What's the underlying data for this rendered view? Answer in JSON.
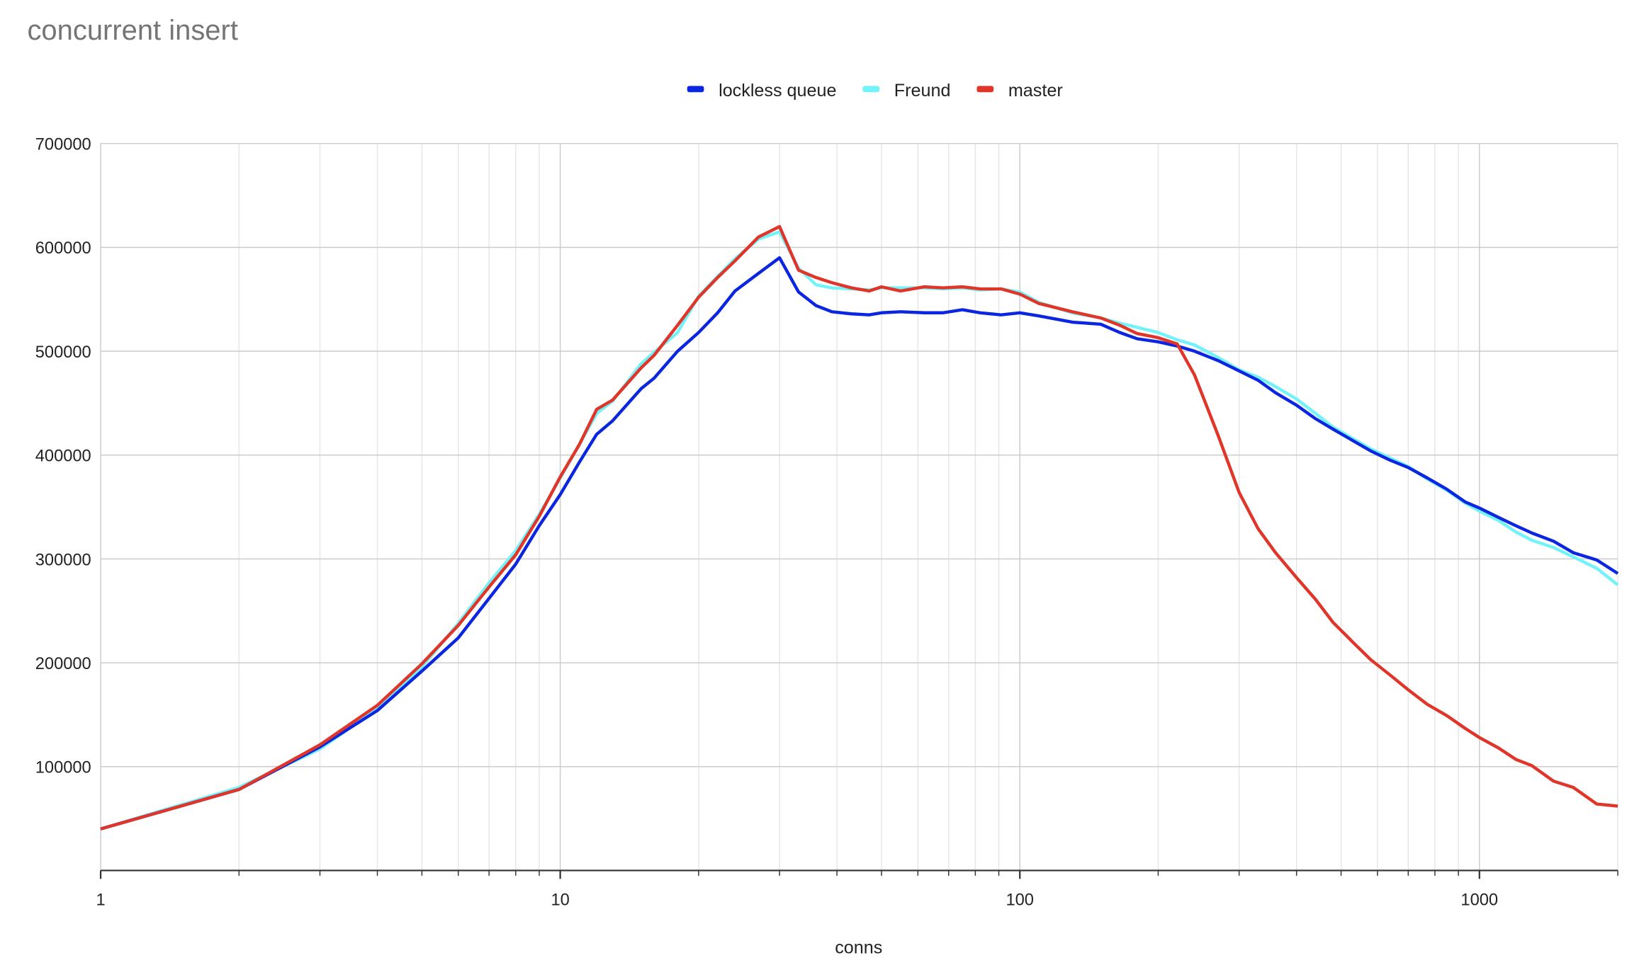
{
  "chart_data": {
    "type": "line",
    "title": "concurrent insert",
    "xlabel": "conns",
    "xscale": "log",
    "legend": "top",
    "grid": true,
    "xlim": [
      1,
      2000
    ],
    "ylim": [
      0,
      700000
    ],
    "xticks": [
      1,
      10,
      100,
      1000
    ],
    "xminorticks": [
      2,
      3,
      4,
      5,
      6,
      7,
      8,
      9,
      20,
      30,
      40,
      50,
      60,
      70,
      80,
      90,
      200,
      300,
      400,
      500,
      600,
      700,
      800,
      900,
      2000
    ],
    "yticks": [
      100000,
      200000,
      300000,
      400000,
      500000,
      600000,
      700000
    ],
    "x": [
      1,
      2,
      3,
      4,
      5,
      6,
      7,
      8,
      9,
      10,
      11,
      12,
      13,
      15,
      16,
      18,
      20,
      22,
      24,
      27,
      30,
      33,
      36,
      39,
      43,
      47,
      50,
      55,
      62,
      68,
      75,
      82,
      91,
      100,
      110,
      130,
      150,
      165,
      180,
      200,
      220,
      240,
      270,
      300,
      330,
      360,
      400,
      440,
      480,
      530,
      580,
      640,
      700,
      770,
      850,
      930,
      1000,
      1100,
      1200,
      1300,
      1450,
      1600,
      1800,
      2000
    ],
    "series": [
      {
        "name": "lockless queue",
        "color": "#0b26e0",
        "values": [
          40000,
          78000,
          119000,
          154000,
          192000,
          224000,
          262000,
          295000,
          332000,
          362000,
          393000,
          420000,
          433000,
          464000,
          474000,
          500000,
          518000,
          537000,
          558000,
          575000,
          590000,
          557000,
          544000,
          538000,
          536000,
          535000,
          537000,
          538000,
          537000,
          537000,
          540000,
          537000,
          535000,
          537000,
          534000,
          528000,
          526000,
          518000,
          512000,
          509000,
          505000,
          500000,
          491000,
          481000,
          472000,
          460000,
          448000,
          435000,
          425000,
          414000,
          404000,
          395000,
          388000,
          378000,
          367000,
          355000,
          349000,
          340000,
          332000,
          325000,
          317000,
          306000,
          299000,
          286000
        ]
      },
      {
        "name": "Freund",
        "color": "#74f2f9",
        "values": [
          40000,
          80000,
          117000,
          156000,
          196000,
          238000,
          277000,
          308000,
          343000,
          378000,
          410000,
          440000,
          452000,
          488000,
          499000,
          518000,
          553000,
          572000,
          589000,
          608000,
          615000,
          580000,
          564000,
          561000,
          560000,
          559000,
          561000,
          561000,
          561000,
          560000,
          561000,
          559000,
          560000,
          557000,
          547000,
          537000,
          532000,
          527000,
          523000,
          518000,
          511000,
          506000,
          494000,
          482000,
          475000,
          466000,
          454000,
          440000,
          427000,
          416000,
          406000,
          397000,
          389000,
          377000,
          366000,
          354000,
          346000,
          337000,
          326000,
          318000,
          311000,
          302000,
          291000,
          275000
        ]
      },
      {
        "name": "master",
        "color": "#e0362a",
        "values": [
          40000,
          78000,
          121000,
          159000,
          199000,
          236000,
          273000,
          304000,
          341000,
          379000,
          410000,
          444000,
          453000,
          484000,
          496000,
          525000,
          552000,
          571000,
          587000,
          610000,
          620000,
          578000,
          571000,
          566000,
          561000,
          558000,
          562000,
          558000,
          562000,
          561000,
          562000,
          560000,
          560000,
          555000,
          546000,
          538000,
          532000,
          525000,
          517000,
          513000,
          507000,
          477000,
          419000,
          364000,
          329000,
          306000,
          282000,
          261000,
          239000,
          220000,
          203000,
          188000,
          174000,
          160000,
          149000,
          137000,
          128000,
          118000,
          107000,
          101000,
          86000,
          80000,
          64000,
          62000
        ]
      }
    ]
  }
}
